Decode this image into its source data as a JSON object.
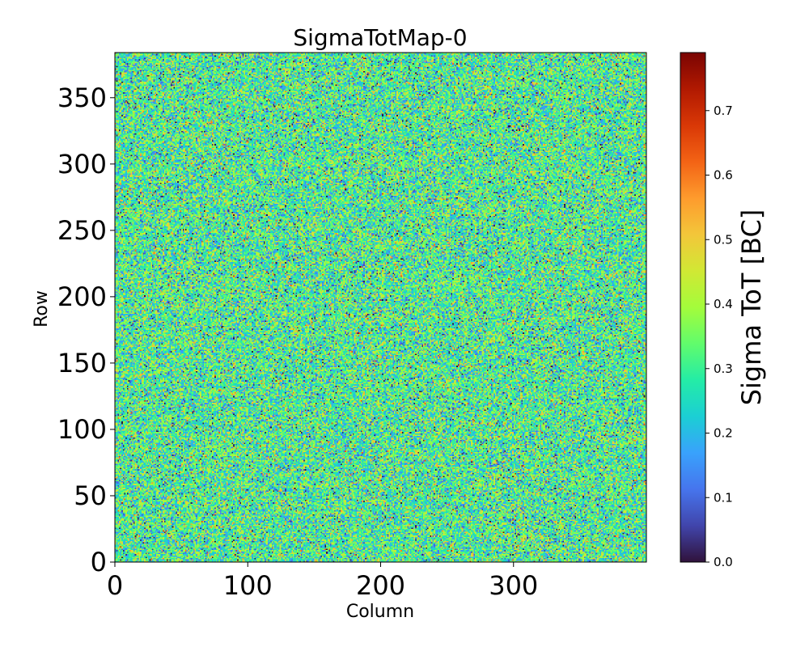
{
  "chart_data": {
    "type": "heatmap",
    "title": "SigmaTotMap-0",
    "xlabel": "Column",
    "ylabel": "Row",
    "xlim": [
      0,
      400
    ],
    "ylim": [
      0,
      384
    ],
    "n_columns": 400,
    "n_rows": 384,
    "x_ticks": [
      0,
      100,
      200,
      300
    ],
    "y_ticks": [
      0,
      50,
      100,
      150,
      200,
      250,
      300,
      350
    ],
    "colorbar": {
      "label": "Sigma ToT [BC]",
      "colormap": "turbo",
      "range": [
        0,
        0.79
      ],
      "ticks": [
        "0.0",
        "0.1",
        "0.2",
        "0.3",
        "0.4",
        "0.5",
        "0.6",
        "0.7"
      ]
    },
    "value_distribution": {
      "description_note": "random noise per pixel",
      "mean": 0.3,
      "std": 0.12,
      "min": 0,
      "max": 0.79
    }
  },
  "colors": {
    "axis": "#000000",
    "background": "#ffffff",
    "turbo_stops": [
      "#30123b",
      "#4145ab",
      "#4675ed",
      "#39a2fc",
      "#1bcfd4",
      "#24eca6",
      "#61fc6c",
      "#a4fc3b",
      "#d1e834",
      "#f3c63a",
      "#fe9b2d",
      "#f36315",
      "#d93806",
      "#b11901",
      "#7a0402"
    ]
  }
}
